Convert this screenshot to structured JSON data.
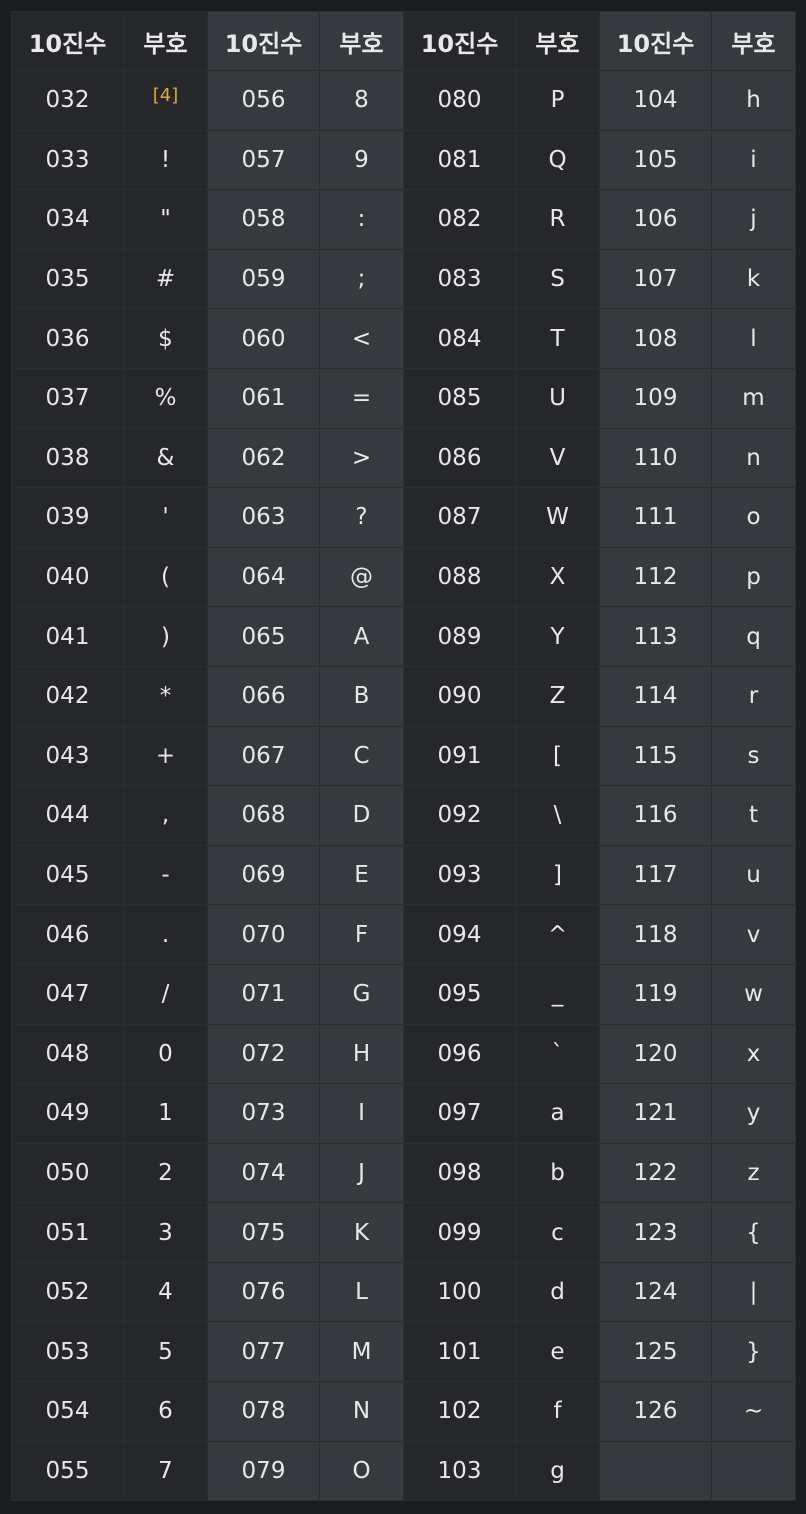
{
  "header": {
    "decimal_label": "10진수",
    "symbol_label": "부호"
  },
  "footnote_mark": "[4]",
  "groups": [
    [
      {
        "dec": "032",
        "sym": ""
      },
      {
        "dec": "033",
        "sym": "!"
      },
      {
        "dec": "034",
        "sym": "\""
      },
      {
        "dec": "035",
        "sym": "#"
      },
      {
        "dec": "036",
        "sym": "$"
      },
      {
        "dec": "037",
        "sym": "%"
      },
      {
        "dec": "038",
        "sym": "&"
      },
      {
        "dec": "039",
        "sym": "'"
      },
      {
        "dec": "040",
        "sym": "("
      },
      {
        "dec": "041",
        "sym": ")"
      },
      {
        "dec": "042",
        "sym": "*"
      },
      {
        "dec": "043",
        "sym": "+"
      },
      {
        "dec": "044",
        "sym": ","
      },
      {
        "dec": "045",
        "sym": "-"
      },
      {
        "dec": "046",
        "sym": "."
      },
      {
        "dec": "047",
        "sym": "/"
      },
      {
        "dec": "048",
        "sym": "0"
      },
      {
        "dec": "049",
        "sym": "1"
      },
      {
        "dec": "050",
        "sym": "2"
      },
      {
        "dec": "051",
        "sym": "3"
      },
      {
        "dec": "052",
        "sym": "4"
      },
      {
        "dec": "053",
        "sym": "5"
      },
      {
        "dec": "054",
        "sym": "6"
      },
      {
        "dec": "055",
        "sym": "7"
      }
    ],
    [
      {
        "dec": "056",
        "sym": "8"
      },
      {
        "dec": "057",
        "sym": "9"
      },
      {
        "dec": "058",
        "sym": ":"
      },
      {
        "dec": "059",
        "sym": ";"
      },
      {
        "dec": "060",
        "sym": "<"
      },
      {
        "dec": "061",
        "sym": "="
      },
      {
        "dec": "062",
        "sym": ">"
      },
      {
        "dec": "063",
        "sym": "?"
      },
      {
        "dec": "064",
        "sym": "@"
      },
      {
        "dec": "065",
        "sym": "A"
      },
      {
        "dec": "066",
        "sym": "B"
      },
      {
        "dec": "067",
        "sym": "C"
      },
      {
        "dec": "068",
        "sym": "D"
      },
      {
        "dec": "069",
        "sym": "E"
      },
      {
        "dec": "070",
        "sym": "F"
      },
      {
        "dec": "071",
        "sym": "G"
      },
      {
        "dec": "072",
        "sym": "H"
      },
      {
        "dec": "073",
        "sym": "I"
      },
      {
        "dec": "074",
        "sym": "J"
      },
      {
        "dec": "075",
        "sym": "K"
      },
      {
        "dec": "076",
        "sym": "L"
      },
      {
        "dec": "077",
        "sym": "M"
      },
      {
        "dec": "078",
        "sym": "N"
      },
      {
        "dec": "079",
        "sym": "O"
      }
    ],
    [
      {
        "dec": "080",
        "sym": "P"
      },
      {
        "dec": "081",
        "sym": "Q"
      },
      {
        "dec": "082",
        "sym": "R"
      },
      {
        "dec": "083",
        "sym": "S"
      },
      {
        "dec": "084",
        "sym": "T"
      },
      {
        "dec": "085",
        "sym": "U"
      },
      {
        "dec": "086",
        "sym": "V"
      },
      {
        "dec": "087",
        "sym": "W"
      },
      {
        "dec": "088",
        "sym": "X"
      },
      {
        "dec": "089",
        "sym": "Y"
      },
      {
        "dec": "090",
        "sym": "Z"
      },
      {
        "dec": "091",
        "sym": "["
      },
      {
        "dec": "092",
        "sym": "\\"
      },
      {
        "dec": "093",
        "sym": "]"
      },
      {
        "dec": "094",
        "sym": "^"
      },
      {
        "dec": "095",
        "sym": "_"
      },
      {
        "dec": "096",
        "sym": "`"
      },
      {
        "dec": "097",
        "sym": "a"
      },
      {
        "dec": "098",
        "sym": "b"
      },
      {
        "dec": "099",
        "sym": "c"
      },
      {
        "dec": "100",
        "sym": "d"
      },
      {
        "dec": "101",
        "sym": "e"
      },
      {
        "dec": "102",
        "sym": "f"
      },
      {
        "dec": "103",
        "sym": "g"
      }
    ],
    [
      {
        "dec": "104",
        "sym": "h"
      },
      {
        "dec": "105",
        "sym": "i"
      },
      {
        "dec": "106",
        "sym": "j"
      },
      {
        "dec": "107",
        "sym": "k"
      },
      {
        "dec": "108",
        "sym": "l"
      },
      {
        "dec": "109",
        "sym": "m"
      },
      {
        "dec": "110",
        "sym": "n"
      },
      {
        "dec": "111",
        "sym": "o"
      },
      {
        "dec": "112",
        "sym": "p"
      },
      {
        "dec": "113",
        "sym": "q"
      },
      {
        "dec": "114",
        "sym": "r"
      },
      {
        "dec": "115",
        "sym": "s"
      },
      {
        "dec": "116",
        "sym": "t"
      },
      {
        "dec": "117",
        "sym": "u"
      },
      {
        "dec": "118",
        "sym": "v"
      },
      {
        "dec": "119",
        "sym": "w"
      },
      {
        "dec": "120",
        "sym": "x"
      },
      {
        "dec": "121",
        "sym": "y"
      },
      {
        "dec": "122",
        "sym": "z"
      },
      {
        "dec": "123",
        "sym": "{"
      },
      {
        "dec": "124",
        "sym": "|"
      },
      {
        "dec": "125",
        "sym": "}"
      },
      {
        "dec": "126",
        "sym": "~"
      }
    ]
  ]
}
